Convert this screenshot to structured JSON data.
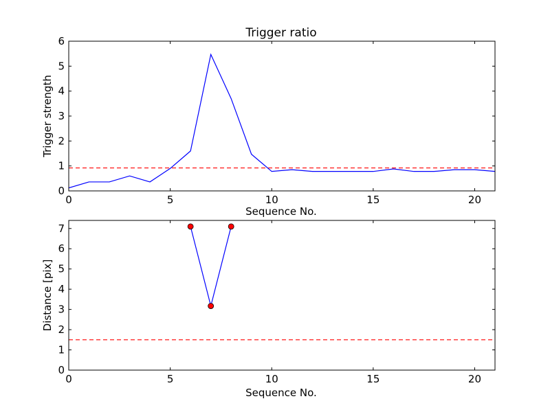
{
  "chart_data": [
    {
      "type": "line",
      "title": "Trigger ratio",
      "xlabel": "Sequence No.",
      "ylabel": "Trigger strength",
      "xlim": [
        0,
        21
      ],
      "ylim": [
        0,
        6
      ],
      "xticks": [
        0,
        5,
        10,
        15,
        20
      ],
      "yticks": [
        0,
        1,
        2,
        3,
        4,
        5,
        6
      ],
      "grid": false,
      "series": [
        {
          "color": "#0000ff",
          "style": "solid",
          "markers": false,
          "x": [
            0,
            1,
            2,
            3,
            4,
            5,
            6,
            7,
            8,
            9,
            10,
            11,
            12,
            13,
            14,
            15,
            16,
            17,
            18,
            19,
            20,
            21
          ],
          "y": [
            0.12,
            0.36,
            0.36,
            0.6,
            0.36,
            0.9,
            1.6,
            5.47,
            3.7,
            1.47,
            0.78,
            0.85,
            0.78,
            0.78,
            0.78,
            0.78,
            0.88,
            0.78,
            0.78,
            0.85,
            0.85,
            0.78
          ]
        }
      ],
      "reference_line": {
        "y": 0.92,
        "color": "#ff0000",
        "style": "dashed"
      }
    },
    {
      "type": "line",
      "title": "",
      "xlabel": "Sequence No.",
      "ylabel": "Distance [pix]",
      "xlim": [
        0,
        21
      ],
      "ylim": [
        0,
        7.4
      ],
      "xticks": [
        0,
        5,
        10,
        15,
        20
      ],
      "yticks": [
        0,
        1,
        2,
        3,
        4,
        5,
        6,
        7
      ],
      "grid": false,
      "series": [
        {
          "color": "#0000ff",
          "style": "solid",
          "markers": true,
          "marker_color": "#ff0000",
          "x": [
            6,
            7,
            8
          ],
          "y": [
            7.1,
            3.17,
            7.1
          ]
        }
      ],
      "reference_line": {
        "y": 1.5,
        "color": "#ff0000",
        "style": "dashed"
      }
    }
  ]
}
